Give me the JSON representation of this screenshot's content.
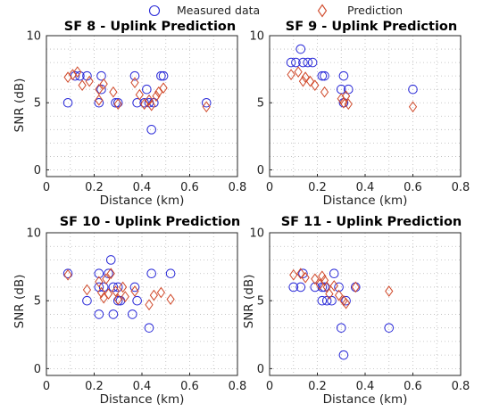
{
  "legend": {
    "measured_label": "Measured data",
    "prediction_label": "Prediction",
    "measured_color": "#2a2ad8",
    "prediction_color": "#d0492a"
  },
  "chart_data": [
    {
      "type": "scatter",
      "title": "SF 8 - Uplink Prediction",
      "xlabel": "Distance (km)",
      "ylabel": "SNR (dB)",
      "xlim": [
        0,
        0.8
      ],
      "ylim": [
        -0.5,
        10
      ],
      "xticks": [
        "0",
        "0.2",
        "0.4",
        "0.6",
        "0.8"
      ],
      "yticks": [
        "0",
        "5",
        "10"
      ],
      "grid": "dotted",
      "series": [
        {
          "name": "Measured data",
          "marker": "circle",
          "points": [
            [
              0.09,
              5
            ],
            [
              0.12,
              7
            ],
            [
              0.14,
              7
            ],
            [
              0.17,
              7
            ],
            [
              0.22,
              5
            ],
            [
              0.23,
              6
            ],
            [
              0.23,
              7
            ],
            [
              0.29,
              5
            ],
            [
              0.3,
              5
            ],
            [
              0.37,
              7
            ],
            [
              0.38,
              5
            ],
            [
              0.41,
              5
            ],
            [
              0.42,
              6
            ],
            [
              0.43,
              5
            ],
            [
              0.44,
              3
            ],
            [
              0.45,
              5
            ],
            [
              0.48,
              7
            ],
            [
              0.49,
              7
            ],
            [
              0.67,
              5
            ]
          ]
        },
        {
          "name": "Prediction",
          "marker": "diamond",
          "points": [
            [
              0.09,
              6.9
            ],
            [
              0.11,
              7.1
            ],
            [
              0.13,
              7.3
            ],
            [
              0.15,
              6.3
            ],
            [
              0.18,
              6.6
            ],
            [
              0.22,
              5.2
            ],
            [
              0.22,
              6
            ],
            [
              0.24,
              6.4
            ],
            [
              0.28,
              5.8
            ],
            [
              0.3,
              4.9
            ],
            [
              0.37,
              6.5
            ],
            [
              0.39,
              5.6
            ],
            [
              0.41,
              4.9
            ],
            [
              0.43,
              5.2
            ],
            [
              0.44,
              4.8
            ],
            [
              0.46,
              5.5
            ],
            [
              0.47,
              5.8
            ],
            [
              0.49,
              6.1
            ],
            [
              0.67,
              4.7
            ]
          ]
        }
      ]
    },
    {
      "type": "scatter",
      "title": "SF 9 - Uplink Prediction",
      "xlabel": "Distance (km)",
      "ylabel": "",
      "xlim": [
        0,
        0.8
      ],
      "ylim": [
        -0.5,
        10
      ],
      "xticks": [
        "0",
        "0.2",
        "0.4",
        "0.6",
        "0.8"
      ],
      "yticks": [
        "0",
        "5",
        "10"
      ],
      "grid": "dotted",
      "series": [
        {
          "name": "Measured data",
          "marker": "circle",
          "points": [
            [
              0.09,
              8
            ],
            [
              0.11,
              8
            ],
            [
              0.13,
              9
            ],
            [
              0.14,
              8
            ],
            [
              0.16,
              8
            ],
            [
              0.18,
              8
            ],
            [
              0.22,
              7
            ],
            [
              0.23,
              7
            ],
            [
              0.3,
              6
            ],
            [
              0.31,
              7
            ],
            [
              0.31,
              5
            ],
            [
              0.33,
              6
            ],
            [
              0.6,
              6
            ]
          ]
        },
        {
          "name": "Prediction",
          "marker": "diamond",
          "points": [
            [
              0.09,
              7.1
            ],
            [
              0.12,
              7.3
            ],
            [
              0.14,
              6.6
            ],
            [
              0.15,
              6.9
            ],
            [
              0.17,
              6.6
            ],
            [
              0.19,
              6.3
            ],
            [
              0.23,
              5.8
            ],
            [
              0.3,
              5.3
            ],
            [
              0.31,
              5
            ],
            [
              0.32,
              5.5
            ],
            [
              0.33,
              4.9
            ],
            [
              0.6,
              4.7
            ]
          ]
        }
      ]
    },
    {
      "type": "scatter",
      "title": "SF 10 - Uplink Prediction",
      "xlabel": "Distance (km)",
      "ylabel": "SNR (dB)",
      "xlim": [
        0,
        0.8
      ],
      "ylim": [
        -0.5,
        10
      ],
      "xticks": [
        "0",
        "0.2",
        "0.4",
        "0.6",
        "0.8"
      ],
      "yticks": [
        "0",
        "5",
        "10"
      ],
      "grid": "dotted",
      "series": [
        {
          "name": "Measured data",
          "marker": "circle",
          "points": [
            [
              0.09,
              7
            ],
            [
              0.17,
              5
            ],
            [
              0.22,
              4
            ],
            [
              0.22,
              6
            ],
            [
              0.22,
              7
            ],
            [
              0.24,
              6
            ],
            [
              0.26,
              7
            ],
            [
              0.27,
              8
            ],
            [
              0.28,
              6
            ],
            [
              0.28,
              4
            ],
            [
              0.3,
              6
            ],
            [
              0.3,
              5
            ],
            [
              0.31,
              5
            ],
            [
              0.36,
              4
            ],
            [
              0.37,
              6
            ],
            [
              0.38,
              5
            ],
            [
              0.43,
              3
            ],
            [
              0.44,
              7
            ],
            [
              0.52,
              7
            ]
          ]
        },
        {
          "name": "Prediction",
          "marker": "diamond",
          "points": [
            [
              0.09,
              6.9
            ],
            [
              0.17,
              5.8
            ],
            [
              0.22,
              6.4
            ],
            [
              0.23,
              5.6
            ],
            [
              0.24,
              5.2
            ],
            [
              0.25,
              6.6
            ],
            [
              0.26,
              5.5
            ],
            [
              0.27,
              7
            ],
            [
              0.29,
              5.7
            ],
            [
              0.3,
              5.1
            ],
            [
              0.32,
              6
            ],
            [
              0.33,
              5.3
            ],
            [
              0.37,
              5.7
            ],
            [
              0.43,
              4.7
            ],
            [
              0.45,
              5.4
            ],
            [
              0.48,
              5.6
            ],
            [
              0.52,
              5.1
            ]
          ]
        }
      ]
    },
    {
      "type": "scatter",
      "title": "SF 11 - Uplink Prediction",
      "xlabel": "Distance (km)",
      "ylabel": "SNR (dB)",
      "xlim": [
        0,
        0.8
      ],
      "ylim": [
        -0.5,
        10
      ],
      "xticks": [
        "0",
        "0.2",
        "0.4",
        "0.6",
        "0.8"
      ],
      "yticks": [
        "0",
        "5",
        "10"
      ],
      "grid": "dotted",
      "series": [
        {
          "name": "Measured data",
          "marker": "circle",
          "points": [
            [
              0.1,
              6
            ],
            [
              0.13,
              6
            ],
            [
              0.14,
              7
            ],
            [
              0.19,
              6
            ],
            [
              0.22,
              6
            ],
            [
              0.22,
              5
            ],
            [
              0.23,
              6
            ],
            [
              0.24,
              5
            ],
            [
              0.26,
              5
            ],
            [
              0.27,
              7
            ],
            [
              0.29,
              6
            ],
            [
              0.3,
              3
            ],
            [
              0.31,
              1
            ],
            [
              0.32,
              5
            ],
            [
              0.36,
              6
            ],
            [
              0.5,
              3
            ]
          ]
        },
        {
          "name": "Prediction",
          "marker": "diamond",
          "points": [
            [
              0.1,
              6.9
            ],
            [
              0.13,
              7
            ],
            [
              0.15,
              6.7
            ],
            [
              0.19,
              6.6
            ],
            [
              0.21,
              6.2
            ],
            [
              0.22,
              6.8
            ],
            [
              0.23,
              6.5
            ],
            [
              0.24,
              6
            ],
            [
              0.25,
              5.5
            ],
            [
              0.27,
              6.1
            ],
            [
              0.29,
              5.4
            ],
            [
              0.31,
              5
            ],
            [
              0.32,
              4.8
            ],
            [
              0.36,
              6
            ],
            [
              0.5,
              5.7
            ]
          ]
        }
      ]
    }
  ]
}
